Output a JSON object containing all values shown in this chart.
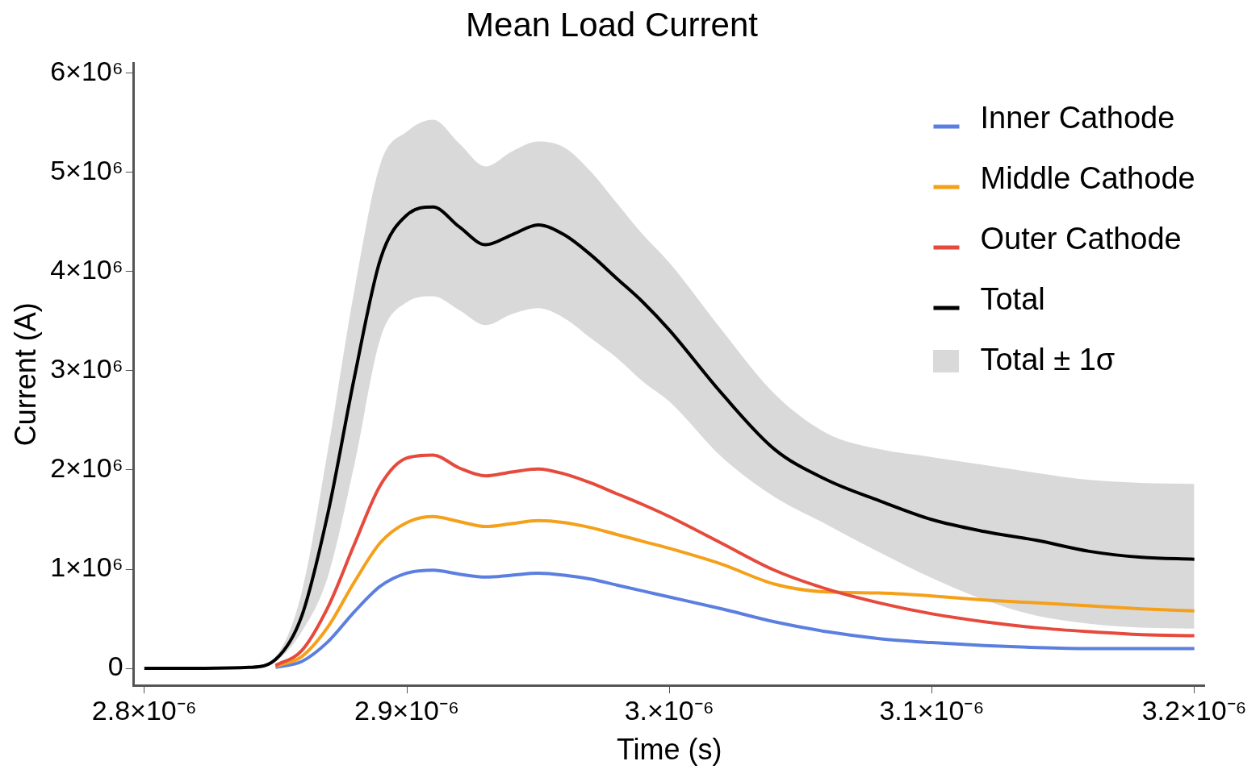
{
  "chart_data": {
    "type": "line",
    "title": "Mean Load Current",
    "xlabel": "Time (s)",
    "ylabel": "Current (A)",
    "xlim": [
      2.796e-06,
      3.204e-06
    ],
    "ylim": [
      -170000,
      6100000
    ],
    "xticks": [
      {
        "value": 2.8e-06,
        "label": "2.8×10⁻⁶"
      },
      {
        "value": 2.9e-06,
        "label": "2.9×10⁻⁶"
      },
      {
        "value": 3e-06,
        "label": "3.×10⁻⁶"
      },
      {
        "value": 3.1e-06,
        "label": "3.1×10⁻⁶"
      },
      {
        "value": 3.2e-06,
        "label": "3.2×10⁻⁶"
      }
    ],
    "yticks": [
      0,
      {
        "value": 1000000,
        "label": "1×10⁶"
      },
      {
        "value": 2000000,
        "label": "2×10⁶"
      },
      {
        "value": 3000000,
        "label": "3×10⁶"
      },
      {
        "value": 4000000,
        "label": "4×10⁶"
      },
      {
        "value": 5000000,
        "label": "5×10⁶"
      },
      {
        "value": 6000000,
        "label": "6×10⁶"
      }
    ],
    "legend": "top right",
    "grid": false,
    "marker": "none",
    "line_style": "solid",
    "annotations": [
      "Total ± 1σ"
    ],
    "x": [
      2.8e-06,
      2.82e-06,
      2.84e-06,
      2.85e-06,
      2.86e-06,
      2.87e-06,
      2.88e-06,
      2.89e-06,
      2.9e-06,
      2.91e-06,
      2.92e-06,
      2.93e-06,
      2.94e-06,
      2.95e-06,
      2.96e-06,
      2.97e-06,
      2.98e-06,
      2.99e-06,
      3e-06,
      3.02e-06,
      3.04e-06,
      3.06e-06,
      3.08e-06,
      3.1e-06,
      3.12e-06,
      3.14e-06,
      3.16e-06,
      3.18e-06,
      3.2e-06
    ],
    "series": [
      {
        "name": "Inner Cathode",
        "color": "#5b7fe0",
        "values": [
          null,
          null,
          null,
          10000,
          70000,
          270000,
          570000,
          830000,
          960000,
          990000,
          950000,
          920000,
          940000,
          960000,
          940000,
          900000,
          840000,
          780000,
          720000,
          600000,
          470000,
          370000,
          300000,
          260000,
          230000,
          210000,
          200000,
          200000,
          200000
        ]
      },
      {
        "name": "Middle Cathode",
        "color": "#f5a01a",
        "values": [
          null,
          null,
          null,
          20000,
          120000,
          420000,
          870000,
          1270000,
          1470000,
          1530000,
          1480000,
          1430000,
          1460000,
          1490000,
          1470000,
          1420000,
          1350000,
          1280000,
          1210000,
          1050000,
          850000,
          770000,
          760000,
          730000,
          690000,
          660000,
          630000,
          600000,
          580000
        ]
      },
      {
        "name": "Outer Cathode",
        "color": "#e64a3c",
        "values": [
          null,
          null,
          null,
          30000,
          180000,
          620000,
          1250000,
          1850000,
          2120000,
          2150000,
          2020000,
          1940000,
          1980000,
          2010000,
          1960000,
          1870000,
          1760000,
          1650000,
          1530000,
          1260000,
          990000,
          800000,
          660000,
          550000,
          470000,
          410000,
          370000,
          340000,
          330000
        ]
      },
      {
        "name": "Total",
        "color": "#000000",
        "values": [
          0,
          0,
          10000,
          90000,
          530000,
          1570000,
          2930000,
          4130000,
          4570000,
          4650000,
          4450000,
          4270000,
          4370000,
          4470000,
          4370000,
          4170000,
          3930000,
          3690000,
          3410000,
          2770000,
          2210000,
          1900000,
          1690000,
          1500000,
          1380000,
          1290000,
          1180000,
          1120000,
          1100000
        ],
        "lower": [
          0,
          0,
          10000,
          70000,
          370000,
          930000,
          2050000,
          3330000,
          3690000,
          3750000,
          3610000,
          3460000,
          3570000,
          3630000,
          3530000,
          3330000,
          3130000,
          2890000,
          2690000,
          2130000,
          1730000,
          1450000,
          1170000,
          910000,
          690000,
          530000,
          450000,
          410000,
          400000
        ],
        "upper": [
          0,
          0,
          20000,
          120000,
          770000,
          2210000,
          3810000,
          5090000,
          5410000,
          5530000,
          5290000,
          5060000,
          5210000,
          5310000,
          5250000,
          5010000,
          4690000,
          4370000,
          4090000,
          3410000,
          2770000,
          2370000,
          2210000,
          2130000,
          2050000,
          1970000,
          1900000,
          1870000,
          1860000
        ]
      }
    ]
  }
}
